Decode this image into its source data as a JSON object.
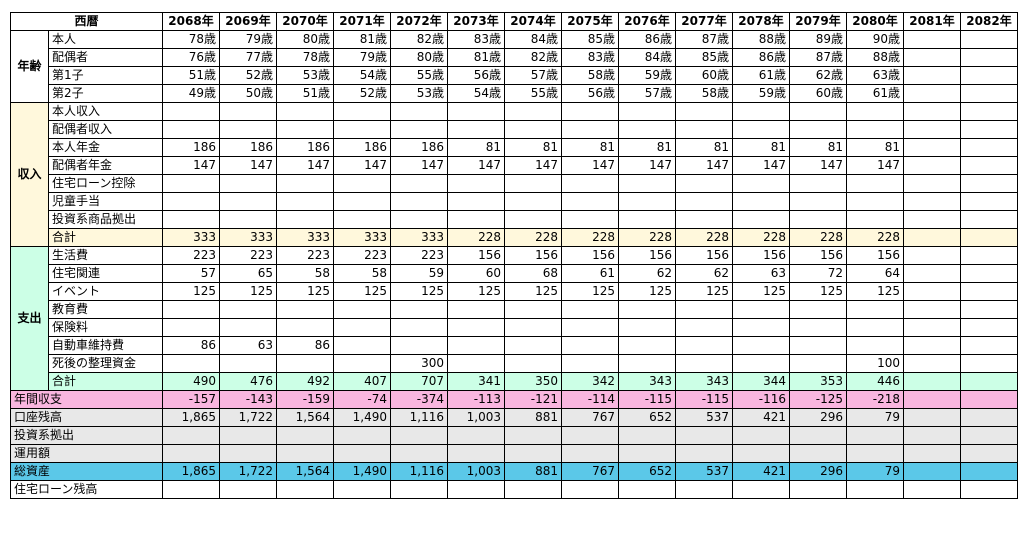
{
  "header": {
    "label": "西暦",
    "years": [
      "2068年",
      "2069年",
      "2070年",
      "2071年",
      "2072年",
      "2073年",
      "2074年",
      "2075年",
      "2076年",
      "2077年",
      "2078年",
      "2079年",
      "2080年",
      "2081年",
      "2082年"
    ]
  },
  "age": {
    "group": "年齢",
    "rows": [
      {
        "label": "本人",
        "values": [
          "78歳",
          "79歳",
          "80歳",
          "81歳",
          "82歳",
          "83歳",
          "84歳",
          "85歳",
          "86歳",
          "87歳",
          "88歳",
          "89歳",
          "90歳",
          "",
          ""
        ]
      },
      {
        "label": "配偶者",
        "values": [
          "76歳",
          "77歳",
          "78歳",
          "79歳",
          "80歳",
          "81歳",
          "82歳",
          "83歳",
          "84歳",
          "85歳",
          "86歳",
          "87歳",
          "88歳",
          "",
          ""
        ]
      },
      {
        "label": "第1子",
        "values": [
          "51歳",
          "52歳",
          "53歳",
          "54歳",
          "55歳",
          "56歳",
          "57歳",
          "58歳",
          "59歳",
          "60歳",
          "61歳",
          "62歳",
          "63歳",
          "",
          ""
        ]
      },
      {
        "label": "第2子",
        "values": [
          "49歳",
          "50歳",
          "51歳",
          "52歳",
          "53歳",
          "54歳",
          "55歳",
          "56歳",
          "57歳",
          "58歳",
          "59歳",
          "60歳",
          "61歳",
          "",
          ""
        ]
      }
    ]
  },
  "income": {
    "group": "収入",
    "rows": [
      {
        "label": "本人収入",
        "values": [
          "",
          "",
          "",
          "",
          "",
          "",
          "",
          "",
          "",
          "",
          "",
          "",
          "",
          "",
          ""
        ]
      },
      {
        "label": "配偶者収入",
        "values": [
          "",
          "",
          "",
          "",
          "",
          "",
          "",
          "",
          "",
          "",
          "",
          "",
          "",
          "",
          ""
        ]
      },
      {
        "label": "本人年金",
        "values": [
          "186",
          "186",
          "186",
          "186",
          "186",
          "81",
          "81",
          "81",
          "81",
          "81",
          "81",
          "81",
          "81",
          "",
          ""
        ]
      },
      {
        "label": "配偶者年金",
        "values": [
          "147",
          "147",
          "147",
          "147",
          "147",
          "147",
          "147",
          "147",
          "147",
          "147",
          "147",
          "147",
          "147",
          "",
          ""
        ]
      },
      {
        "label": "住宅ローン控除",
        "values": [
          "",
          "",
          "",
          "",
          "",
          "",
          "",
          "",
          "",
          "",
          "",
          "",
          "",
          "",
          ""
        ]
      },
      {
        "label": "児童手当",
        "values": [
          "",
          "",
          "",
          "",
          "",
          "",
          "",
          "",
          "",
          "",
          "",
          "",
          "",
          "",
          ""
        ]
      },
      {
        "label": "投資系商品拠出",
        "values": [
          "",
          "",
          "",
          "",
          "",
          "",
          "",
          "",
          "",
          "",
          "",
          "",
          "",
          "",
          ""
        ]
      }
    ],
    "total": {
      "label": "合計",
      "values": [
        "333",
        "333",
        "333",
        "333",
        "333",
        "228",
        "228",
        "228",
        "228",
        "228",
        "228",
        "228",
        "228",
        "",
        ""
      ]
    }
  },
  "expense": {
    "group": "支出",
    "rows": [
      {
        "label": "生活費",
        "values": [
          "223",
          "223",
          "223",
          "223",
          "223",
          "156",
          "156",
          "156",
          "156",
          "156",
          "156",
          "156",
          "156",
          "",
          ""
        ]
      },
      {
        "label": "住宅関連",
        "values": [
          "57",
          "65",
          "58",
          "58",
          "59",
          "60",
          "68",
          "61",
          "62",
          "62",
          "63",
          "72",
          "64",
          "",
          ""
        ]
      },
      {
        "label": "イベント",
        "values": [
          "125",
          "125",
          "125",
          "125",
          "125",
          "125",
          "125",
          "125",
          "125",
          "125",
          "125",
          "125",
          "125",
          "",
          ""
        ]
      },
      {
        "label": "教育費",
        "values": [
          "",
          "",
          "",
          "",
          "",
          "",
          "",
          "",
          "",
          "",
          "",
          "",
          "",
          "",
          ""
        ]
      },
      {
        "label": "保険料",
        "values": [
          "",
          "",
          "",
          "",
          "",
          "",
          "",
          "",
          "",
          "",
          "",
          "",
          "",
          "",
          ""
        ]
      },
      {
        "label": "自動車維持費",
        "values": [
          "86",
          "63",
          "86",
          "",
          "",
          "",
          "",
          "",
          "",
          "",
          "",
          "",
          "",
          "",
          ""
        ]
      },
      {
        "label": "死後の整理資金",
        "values": [
          "",
          "",
          "",
          "",
          "300",
          "",
          "",
          "",
          "",
          "",
          "",
          "",
          "100",
          "",
          ""
        ]
      }
    ],
    "total": {
      "label": "合計",
      "values": [
        "490",
        "476",
        "492",
        "407",
        "707",
        "341",
        "350",
        "342",
        "343",
        "343",
        "344",
        "353",
        "446",
        "",
        ""
      ]
    }
  },
  "summary": [
    {
      "label": "年間収支",
      "style": "pink",
      "values": [
        "-157",
        "-143",
        "-159",
        "-74",
        "-374",
        "-113",
        "-121",
        "-114",
        "-115",
        "-115",
        "-116",
        "-125",
        "-218",
        "",
        ""
      ]
    },
    {
      "label": "口座残高",
      "style": "gray",
      "values": [
        "1,865",
        "1,722",
        "1,564",
        "1,490",
        "1,116",
        "1,003",
        "881",
        "767",
        "652",
        "537",
        "421",
        "296",
        "79",
        "",
        ""
      ]
    },
    {
      "label": "投資系拠出",
      "style": "gray",
      "values": [
        "",
        "",
        "",
        "",
        "",
        "",
        "",
        "",
        "",
        "",
        "",
        "",
        "",
        "",
        ""
      ]
    },
    {
      "label": "運用額",
      "style": "gray",
      "values": [
        "",
        "",
        "",
        "",
        "",
        "",
        "",
        "",
        "",
        "",
        "",
        "",
        "",
        "",
        ""
      ]
    },
    {
      "label": "総資産",
      "style": "blue",
      "values": [
        "1,865",
        "1,722",
        "1,564",
        "1,490",
        "1,116",
        "1,003",
        "881",
        "767",
        "652",
        "537",
        "421",
        "296",
        "79",
        "",
        ""
      ]
    },
    {
      "label": "住宅ローン残高",
      "style": "white",
      "values": [
        "",
        "",
        "",
        "",
        "",
        "",
        "",
        "",
        "",
        "",
        "",
        "",
        "",
        "",
        ""
      ]
    }
  ]
}
